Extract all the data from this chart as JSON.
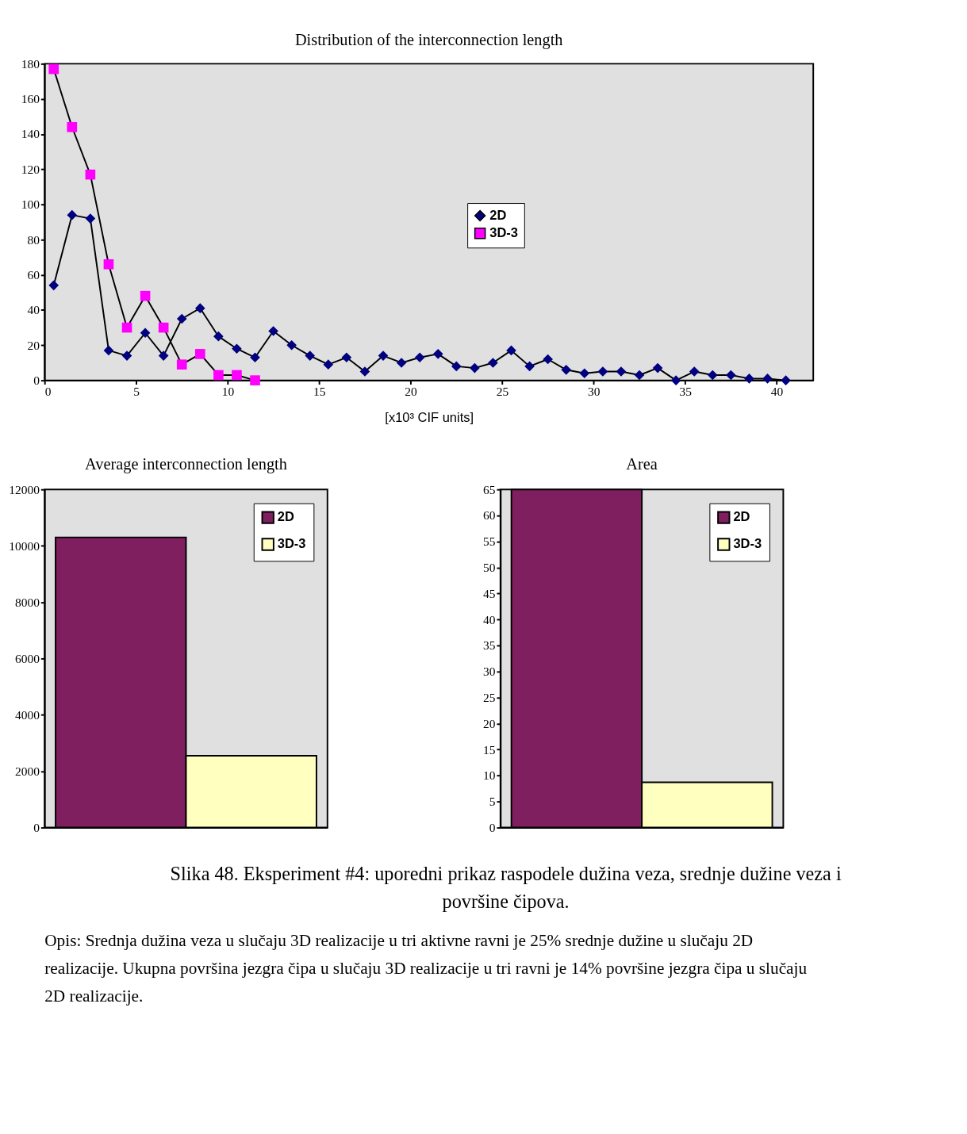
{
  "chart_data": [
    {
      "type": "line",
      "title": "Distribution of the interconnection length",
      "xlabel": "[x10³ CIF units]",
      "x": [
        0.5,
        1.5,
        2.5,
        3.5,
        4.5,
        5.5,
        6.5,
        7.5,
        8.5,
        9.5,
        10.5,
        11.5,
        12.5,
        13.5,
        14.5,
        15.5,
        16.5,
        17.5,
        18.5,
        19.5,
        20.5,
        21.5,
        22.5,
        23.5,
        24.5,
        25.5,
        26.5,
        27.5,
        28.5,
        29.5,
        30.5,
        31.5,
        32.5,
        33.5,
        34.5,
        35.5,
        36.5,
        37.5,
        38.5,
        39.5,
        40.5
      ],
      "series": [
        {
          "name": "2D",
          "color": "#000080",
          "marker": "diamond",
          "values": [
            54,
            94,
            92,
            17,
            14,
            27,
            14,
            35,
            41,
            25,
            18,
            13,
            28,
            20,
            14,
            9,
            13,
            5,
            14,
            10,
            13,
            15,
            8,
            7,
            10,
            17,
            8,
            12,
            6,
            4,
            5,
            5,
            3,
            7,
            0,
            5,
            3,
            3,
            1,
            1,
            0
          ]
        },
        {
          "name": "3D-3",
          "color": "#ff00ff",
          "marker": "square",
          "x": [
            0.5,
            1.5,
            2.5,
            3.5,
            4.5,
            5.5,
            6.5,
            7.5,
            8.5,
            9.5,
            10.5,
            11.5
          ],
          "values": [
            177,
            144,
            117,
            66,
            30,
            48,
            30,
            9,
            15,
            3,
            3,
            0
          ]
        }
      ],
      "xlim": [
        0,
        42
      ],
      "xticks": [
        0,
        5,
        10,
        15,
        20,
        25,
        30,
        35,
        40
      ],
      "ylim": [
        0,
        180
      ],
      "yticks": [
        0,
        20,
        40,
        60,
        80,
        100,
        120,
        140,
        160,
        180
      ],
      "grid": false,
      "legend": "right",
      "line_style": "solid"
    },
    {
      "type": "bar",
      "title": "Average interconnection length",
      "categories": [
        null
      ],
      "series": [
        {
          "name": "2D",
          "color": "#7f1f5f",
          "values": [
            10300
          ]
        },
        {
          "name": "3D-3",
          "color": "#ffffc0",
          "values": [
            2550
          ]
        }
      ],
      "ylim": [
        0,
        12000
      ],
      "yticks": [
        0,
        2000,
        4000,
        6000,
        8000,
        10000,
        12000
      ],
      "grid": false,
      "legend": "top right",
      "tick_labels": "y"
    },
    {
      "type": "bar",
      "title": "Area",
      "categories": [
        null
      ],
      "series": [
        {
          "name": "2D",
          "color": "#7f1f5f",
          "values": [
            65
          ]
        },
        {
          "name": "3D-3",
          "color": "#ffffc0",
          "values": [
            8.7
          ]
        }
      ],
      "ylim": [
        0,
        65
      ],
      "yticks": [
        0,
        5,
        10,
        15,
        20,
        25,
        30,
        35,
        40,
        45,
        50,
        55,
        60,
        65
      ],
      "grid": false,
      "legend": "top right",
      "tick_labels": "y",
      "annotations": [
        "Slika 48. Eksperiment #4: uporedni prikaz raspodele dužina veza, srednje dužine veza i površine čipova.",
        "Opis: Srednja dužina veza u slučaju 3D realizacije u tri aktivne ravni je 25% srednje dužine u slučaju 2D realizacije. Ukupna površina jezgra čipa u slučaju 3D realizacije u tri ravni je 14% površine jezgra čipa u slučaju 2D realizacije."
      ]
    }
  ]
}
